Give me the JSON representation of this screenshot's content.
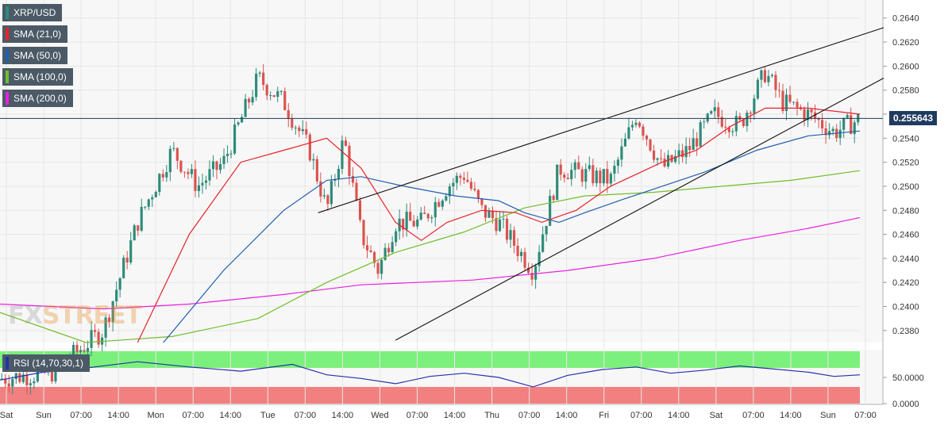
{
  "legend": {
    "symbol": "XRP/USD",
    "sma21": "SMA (21,0)",
    "sma50": "SMA (50,0)",
    "sma100": "SMA (100,0)",
    "sma200": "SMA (200,0)",
    "rsi": "RSI (14,70,30,1)"
  },
  "watermark": {
    "part1": "FX",
    "part2": "STREET"
  },
  "current_price": "0.255643",
  "colors": {
    "up": "#2e8b7a",
    "down": "#d9534f",
    "sma21": "#e8222a",
    "sma50": "#1f5fae",
    "sma100": "#6fbf2a",
    "sma200": "#ea1fe0",
    "rsi_overbought": "#77ee77",
    "rsi_oversold": "#f07a7a",
    "rsi_line": "#2233aa",
    "price_tag": "#1f3a5f"
  },
  "chart_data": {
    "type": "candlestick",
    "timeframe_labels": [
      "Sat",
      "Sun",
      "07:00",
      "14:00",
      "Mon",
      "07:00",
      "14:00",
      "Tue",
      "07:00",
      "14:00",
      "Wed",
      "07:00",
      "14:00",
      "Thu",
      "07:00",
      "14:00",
      "Fri",
      "07:00",
      "14:00",
      "Sat",
      "07:00",
      "14:00",
      "Sun",
      "07:00"
    ],
    "price_axis": {
      "ticks": [
        "0.2380",
        "0.2400",
        "0.2420",
        "0.2440",
        "0.2460",
        "0.2480",
        "0.2500",
        "0.2520",
        "0.2540",
        "0.2560",
        "0.2580",
        "0.2600",
        "0.2620",
        "0.2640"
      ],
      "ylim": [
        0.237,
        0.2655
      ]
    },
    "rsi_axis": {
      "ticks": [
        "0.0000",
        "50.0000"
      ]
    },
    "last_price": 0.255643,
    "close_path": [
      [
        0,
        0.234
      ],
      [
        0.06,
        0.2345
      ],
      [
        0.12,
        0.238
      ],
      [
        0.16,
        0.247
      ],
      [
        0.2,
        0.253
      ],
      [
        0.23,
        0.25
      ],
      [
        0.26,
        0.252
      ],
      [
        0.3,
        0.259
      ],
      [
        0.33,
        0.257
      ],
      [
        0.36,
        0.253
      ],
      [
        0.38,
        0.248
      ],
      [
        0.4,
        0.254
      ],
      [
        0.42,
        0.246
      ],
      [
        0.44,
        0.243
      ],
      [
        0.46,
        0.247
      ],
      [
        0.49,
        0.247
      ],
      [
        0.52,
        0.25
      ],
      [
        0.54,
        0.251
      ],
      [
        0.56,
        0.248
      ],
      [
        0.58,
        0.247
      ],
      [
        0.6,
        0.245
      ],
      [
        0.62,
        0.243
      ],
      [
        0.65,
        0.2515
      ],
      [
        0.68,
        0.251
      ],
      [
        0.71,
        0.2505
      ],
      [
        0.74,
        0.256
      ],
      [
        0.77,
        0.2515
      ],
      [
        0.8,
        0.253
      ],
      [
        0.83,
        0.256
      ],
      [
        0.86,
        0.255
      ],
      [
        0.89,
        0.2595
      ],
      [
        0.91,
        0.257
      ],
      [
        0.94,
        0.256
      ],
      [
        0.97,
        0.2545
      ],
      [
        1.0,
        0.2556
      ]
    ],
    "sma21_path": [
      [
        0.16,
        0.237
      ],
      [
        0.22,
        0.246
      ],
      [
        0.28,
        0.252
      ],
      [
        0.33,
        0.253
      ],
      [
        0.38,
        0.254
      ],
      [
        0.42,
        0.2515
      ],
      [
        0.46,
        0.247
      ],
      [
        0.49,
        0.2455
      ],
      [
        0.52,
        0.247
      ],
      [
        0.56,
        0.248
      ],
      [
        0.6,
        0.2478
      ],
      [
        0.63,
        0.247
      ],
      [
        0.67,
        0.248
      ],
      [
        0.71,
        0.25
      ],
      [
        0.74,
        0.251
      ],
      [
        0.77,
        0.252
      ],
      [
        0.81,
        0.253
      ],
      [
        0.85,
        0.255
      ],
      [
        0.89,
        0.2565
      ],
      [
        0.94,
        0.2565
      ],
      [
        1.0,
        0.256
      ]
    ],
    "sma50_path": [
      [
        0.19,
        0.237
      ],
      [
        0.26,
        0.243
      ],
      [
        0.33,
        0.248
      ],
      [
        0.38,
        0.2505
      ],
      [
        0.42,
        0.2508
      ],
      [
        0.47,
        0.25
      ],
      [
        0.53,
        0.2492
      ],
      [
        0.58,
        0.2488
      ],
      [
        0.61,
        0.2478
      ],
      [
        0.65,
        0.247
      ],
      [
        0.68,
        0.2478
      ],
      [
        0.72,
        0.2488
      ],
      [
        0.77,
        0.25
      ],
      [
        0.82,
        0.2512
      ],
      [
        0.88,
        0.253
      ],
      [
        0.94,
        0.2542
      ],
      [
        1.0,
        0.2546
      ]
    ],
    "sma100_path": [
      [
        0,
        0.2395
      ],
      [
        0.1,
        0.237
      ],
      [
        0.2,
        0.2375
      ],
      [
        0.3,
        0.239
      ],
      [
        0.38,
        0.242
      ],
      [
        0.46,
        0.2445
      ],
      [
        0.54,
        0.2462
      ],
      [
        0.61,
        0.2482
      ],
      [
        0.68,
        0.2492
      ],
      [
        0.76,
        0.2495
      ],
      [
        0.84,
        0.25
      ],
      [
        0.92,
        0.2505
      ],
      [
        1.0,
        0.2513
      ]
    ],
    "sma200_path": [
      [
        0,
        0.2402
      ],
      [
        0.12,
        0.2398
      ],
      [
        0.22,
        0.2402
      ],
      [
        0.33,
        0.241
      ],
      [
        0.42,
        0.2418
      ],
      [
        0.55,
        0.2422
      ],
      [
        0.66,
        0.243
      ],
      [
        0.76,
        0.244
      ],
      [
        0.86,
        0.2455
      ],
      [
        0.94,
        0.2465
      ],
      [
        1.0,
        0.2474
      ]
    ],
    "rsi_path": [
      [
        0,
        45
      ],
      [
        0.05,
        60
      ],
      [
        0.1,
        68
      ],
      [
        0.16,
        80
      ],
      [
        0.22,
        70
      ],
      [
        0.28,
        62
      ],
      [
        0.34,
        75
      ],
      [
        0.38,
        55
      ],
      [
        0.42,
        48
      ],
      [
        0.46,
        38
      ],
      [
        0.5,
        52
      ],
      [
        0.54,
        58
      ],
      [
        0.58,
        50
      ],
      [
        0.62,
        32
      ],
      [
        0.66,
        54
      ],
      [
        0.7,
        65
      ],
      [
        0.74,
        70
      ],
      [
        0.78,
        58
      ],
      [
        0.82,
        64
      ],
      [
        0.86,
        72
      ],
      [
        0.9,
        66
      ],
      [
        0.94,
        60
      ],
      [
        0.97,
        52
      ],
      [
        1.0,
        55
      ]
    ],
    "trendlines": [
      {
        "from": [
          0.37,
          0.2478
        ],
        "to": [
          1.0,
          0.2632
        ]
      },
      {
        "from": [
          0.46,
          0.2372
        ],
        "to": [
          1.0,
          0.259
        ]
      }
    ]
  }
}
